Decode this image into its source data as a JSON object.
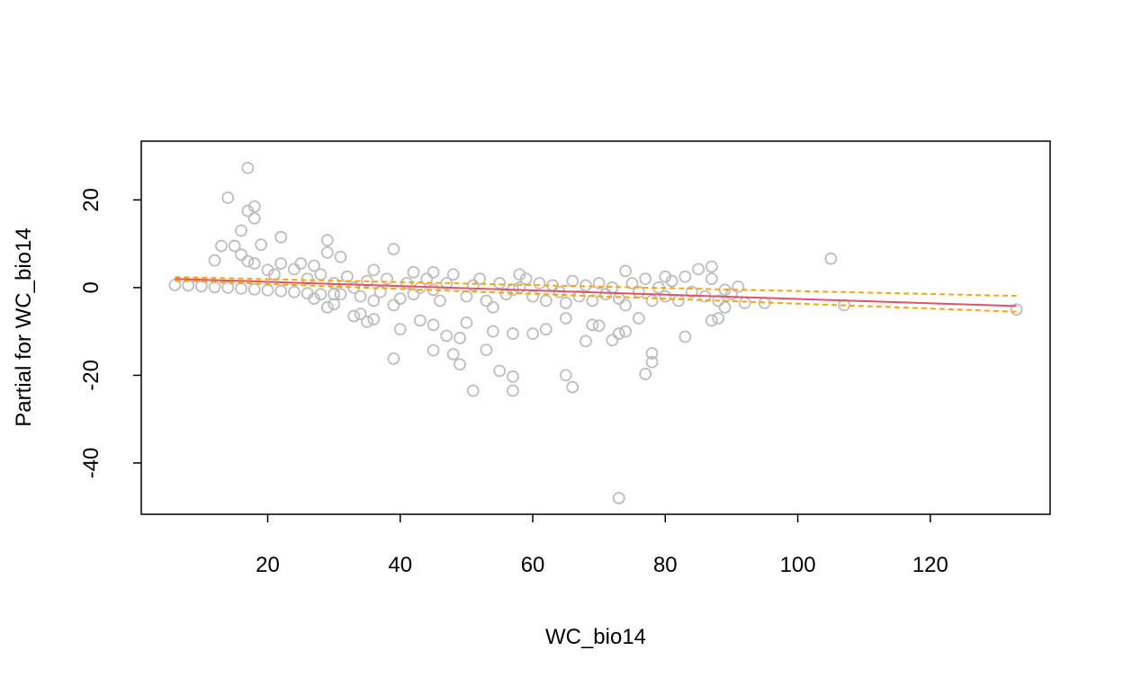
{
  "chart_data": {
    "type": "scatter",
    "x_label": "WC_bio14",
    "y_label": "Partial for WC_bio14",
    "xlim": [
      0.92,
      138.08
    ],
    "ylim": [
      -51.7,
      33.4
    ],
    "xticks": [
      20,
      40,
      60,
      80,
      100,
      120
    ],
    "yticks": [
      -40,
      -20,
      0,
      20
    ],
    "series": [
      {
        "color": "#bebebe",
        "x": [
          17,
          14,
          18,
          17,
          18,
          16,
          22,
          13,
          15,
          19,
          29,
          39,
          29,
          31,
          12,
          105,
          87,
          74,
          107,
          133,
          73,
          51,
          57,
          57,
          55,
          66,
          65,
          77,
          78,
          78,
          49,
          39,
          48,
          45,
          53,
          47,
          49,
          54,
          57,
          60,
          68,
          72,
          73,
          74,
          83,
          40,
          43,
          45,
          50,
          35,
          36,
          33,
          34,
          62,
          65,
          69,
          70,
          76,
          87,
          88,
          29,
          30,
          39,
          92,
          95,
          89,
          91,
          85,
          80,
          22,
          25,
          27,
          36,
          42,
          45,
          58,
          20,
          24,
          16,
          17,
          18,
          21,
          6,
          8,
          10,
          12,
          14,
          16,
          18,
          20,
          22,
          24,
          26,
          28,
          30,
          26,
          28,
          30,
          32,
          34,
          35,
          37,
          38,
          40,
          41,
          42,
          44,
          46,
          47,
          48,
          50,
          51,
          52,
          53,
          55,
          56,
          58,
          59,
          60,
          61,
          62,
          63,
          64,
          66,
          67,
          68,
          69,
          70,
          71,
          72,
          73,
          75,
          76,
          77,
          78,
          79,
          80,
          81,
          82,
          83,
          84,
          86,
          87,
          88,
          89,
          90,
          33,
          36,
          43,
          57,
          65,
          74,
          45,
          27,
          31,
          54
        ],
        "y": [
          27.3,
          20.5,
          18.5,
          17.5,
          15.8,
          13,
          11.5,
          9.5,
          9.5,
          9.8,
          10.8,
          8.8,
          8,
          7,
          6.2,
          6.6,
          4.8,
          3.8,
          -4,
          -5,
          -48,
          -23.5,
          -23.5,
          -20.3,
          -19,
          -22.7,
          -20,
          -19.7,
          -17,
          -15,
          -17.5,
          -16.2,
          -15.2,
          -14.3,
          -14.2,
          -11,
          -11.5,
          -10,
          -10.5,
          -10.5,
          -12.2,
          -12,
          -10.5,
          -10,
          -11.2,
          -9.5,
          -7.5,
          -8.5,
          -8,
          -7.8,
          -7.2,
          -6.5,
          -6,
          -9.5,
          -7,
          -8.5,
          -8.7,
          -7,
          -7.5,
          -7,
          -4.5,
          -3.8,
          -4,
          -3.5,
          -3.5,
          -4.5,
          0.2,
          4.2,
          2.5,
          5.5,
          5.5,
          5,
          4,
          3.5,
          3.5,
          3,
          4,
          4.2,
          7.5,
          6,
          5.5,
          3,
          0.6,
          0.5,
          0.3,
          0.1,
          0,
          -0.2,
          -0.4,
          -0.6,
          -0.8,
          -1,
          -1.3,
          -1.5,
          -1.5,
          2,
          3,
          1,
          2.5,
          -2,
          1.5,
          -1,
          2,
          -2.5,
          1,
          -1.5,
          2,
          -3,
          1,
          3,
          -2,
          0.5,
          2,
          -3,
          1,
          -1.5,
          0,
          2,
          -2,
          1,
          -3,
          0.5,
          -1,
          1.5,
          -2,
          0.5,
          -3,
          1,
          -1.5,
          0,
          -2.5,
          1,
          -1,
          2,
          -3,
          0,
          -2,
          1.5,
          -3,
          2.5,
          -1,
          -2,
          2,
          -3,
          -0.5,
          -1.5,
          0,
          -3,
          0,
          -0.5,
          -3.5,
          -4,
          -0.5,
          -2.5,
          -1.5,
          -4.5
        ]
      }
    ],
    "lines": [
      {
        "color": "#df536b",
        "dashed": false,
        "x": [
          6,
          133
        ],
        "y": [
          2.0,
          -4.2
        ]
      },
      {
        "color": "#ffa500",
        "dashed": true,
        "x": [
          6,
          133
        ],
        "y": [
          2.4,
          -1.9
        ]
      },
      {
        "color": "#ffa500",
        "dashed": true,
        "x": [
          6,
          133
        ],
        "y": [
          1.6,
          -5.5
        ]
      }
    ]
  }
}
